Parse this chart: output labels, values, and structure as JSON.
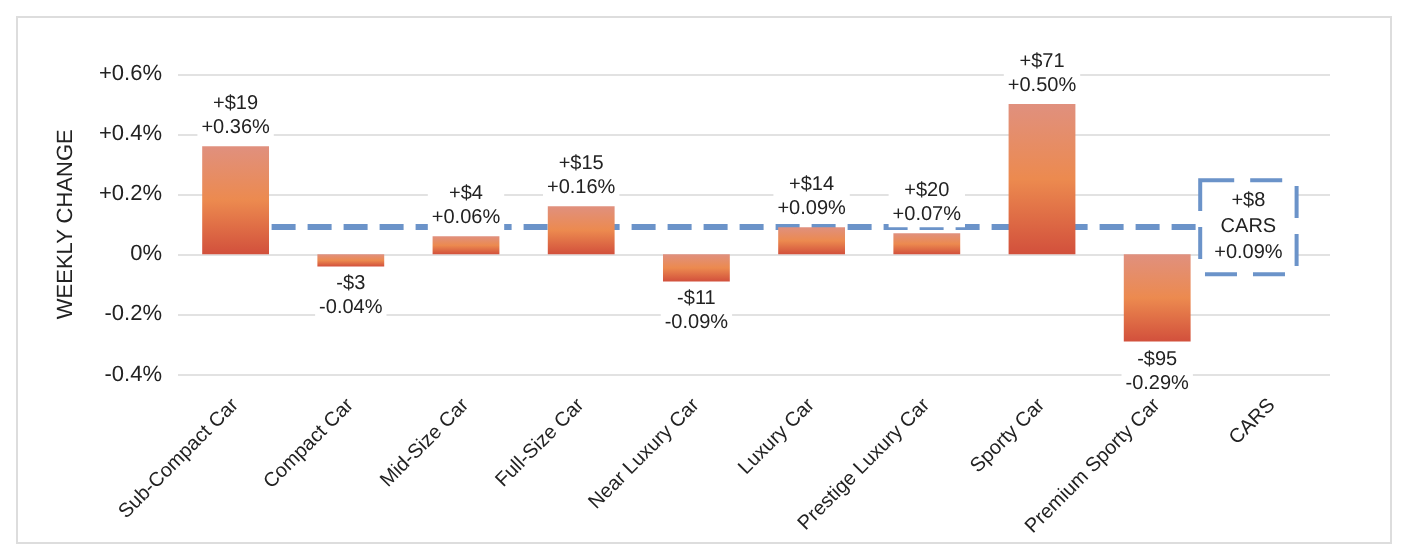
{
  "chart_data": {
    "type": "bar",
    "ylabel": "WEEKLY CHANGE",
    "categories": [
      "Sub-Compact Car",
      "Compact Car",
      "Mid-Size Car",
      "Full-Size Car",
      "Near Luxury Car",
      "Luxury Car",
      "Prestige Luxury Car",
      "Sporty Car",
      "Premium Sporty Car",
      "CARS"
    ],
    "values": [
      0.36,
      -0.04,
      0.06,
      0.16,
      -0.09,
      0.09,
      0.07,
      0.5,
      -0.29,
      null
    ],
    "value_labels": [
      "+$19\n+0.36%",
      "-$3\n-0.04%",
      "+$4\n+0.06%",
      "+$15\n+0.16%",
      "-$11\n-0.09%",
      "+$14\n+0.09%",
      "+$20\n+0.07%",
      "+$71\n+0.50%",
      "-$95\n-0.29%",
      null
    ],
    "color": "#ec8a4f",
    "ylim": [
      -0.4,
      0.6
    ],
    "yticks": [
      {
        "value": -0.4,
        "label": "-0.4%"
      },
      {
        "value": -0.2,
        "label": "-0.2%"
      },
      {
        "value": 0,
        "label": "0%"
      },
      {
        "value": 0.2,
        "label": "+0.2%"
      },
      {
        "value": 0.4,
        "label": "+0.4%"
      },
      {
        "value": 0.6,
        "label": "+0.6%"
      }
    ],
    "grid": "y",
    "ref_lines": [
      {
        "axis": "y",
        "value": 0.09,
        "label": "+$8\nCARS\n+0.09%",
        "color": "#6b93c9",
        "line_style": "dashed"
      }
    ]
  }
}
